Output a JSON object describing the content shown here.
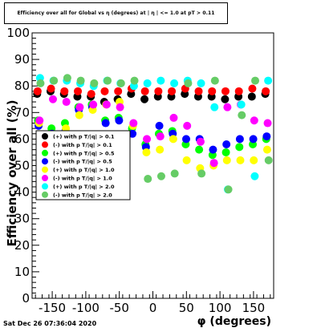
{
  "page": {
    "title": "Efficiency over all for Global vs η (degrees) at | η | <= 1.0 at pT > 0.11",
    "timestamp": "Sat Dec 26 07:36:04 2020"
  },
  "chart_data": {
    "type": "scatter",
    "title": "Efficiency over all for Global vs η (degrees) at | η | <= 1.0 at pT > 0.11",
    "xlabel": "φ (degrees)",
    "ylabel": "Efficiency over all (%)",
    "xlim": [
      -180,
      180
    ],
    "ylim": [
      0,
      100
    ],
    "x_ticks": [
      -150,
      -100,
      -50,
      0,
      50,
      100,
      150
    ],
    "y_ticks": [
      0,
      10,
      20,
      30,
      40,
      50,
      60,
      70,
      80,
      90,
      100
    ],
    "grid": false,
    "legend_position": "middle-left",
    "x": [
      -170,
      -150,
      -130,
      -110,
      -90,
      -70,
      -50,
      -30,
      -10,
      10,
      30,
      50,
      70,
      90,
      110,
      130,
      150,
      170
    ],
    "series": [
      {
        "name": "(+) with p T/|q| > 0.1",
        "color": "#000000",
        "values": [
          77,
          78,
          77,
          76,
          76,
          74,
          75,
          77,
          75,
          76,
          76,
          77,
          76,
          76,
          75,
          76,
          76,
          77
        ]
      },
      {
        "name": "(-) with p T/|q| > 0.1",
        "color": "#ff0000",
        "values": [
          78,
          79,
          78,
          78,
          77,
          78,
          78,
          79,
          78,
          78,
          78,
          79,
          78,
          78,
          78,
          78,
          79,
          78
        ]
      },
      {
        "name": "(+) with p T/|q| > 0.5",
        "color": "#00ff00",
        "values": [
          67,
          64,
          66,
          72,
          73,
          67,
          68,
          64,
          58,
          62,
          63,
          58,
          56,
          54,
          55,
          57,
          58,
          60
        ]
      },
      {
        "name": "(-) with p T/|q| > 0.5",
        "color": "#0000ff",
        "values": [
          65,
          62,
          63,
          71,
          72,
          66,
          67,
          62,
          57,
          65,
          62,
          60,
          60,
          56,
          58,
          60,
          60,
          61
        ]
      },
      {
        "name": "(+) with p T/|q| > 1.0",
        "color": "#ffff00",
        "values": [
          66,
          60,
          64,
          69,
          71,
          73,
          74,
          65,
          55,
          56,
          60,
          52,
          49,
          50,
          52,
          52,
          52,
          56
        ]
      },
      {
        "name": "(-) with p T/|q| > 1.0",
        "color": "#ff00ff",
        "values": [
          67,
          75,
          74,
          72,
          73,
          73,
          72,
          66,
          60,
          61,
          68,
          65,
          59,
          51,
          72,
          73,
          67,
          66
        ]
      },
      {
        "name": "(+) with p T/|q| > 2.0",
        "color": "#00ffff",
        "values": [
          83,
          82,
          82,
          81,
          80,
          82,
          81,
          80,
          81,
          82,
          81,
          82,
          81,
          72,
          41,
          73,
          46,
          82
        ]
      },
      {
        "name": "(-) with p T/|q| > 2.0",
        "color": "#66cc66",
        "values": [
          81,
          82,
          83,
          82,
          81,
          82,
          81,
          82,
          45,
          46,
          47,
          81,
          47,
          82,
          41,
          69,
          82,
          52
        ]
      }
    ]
  }
}
